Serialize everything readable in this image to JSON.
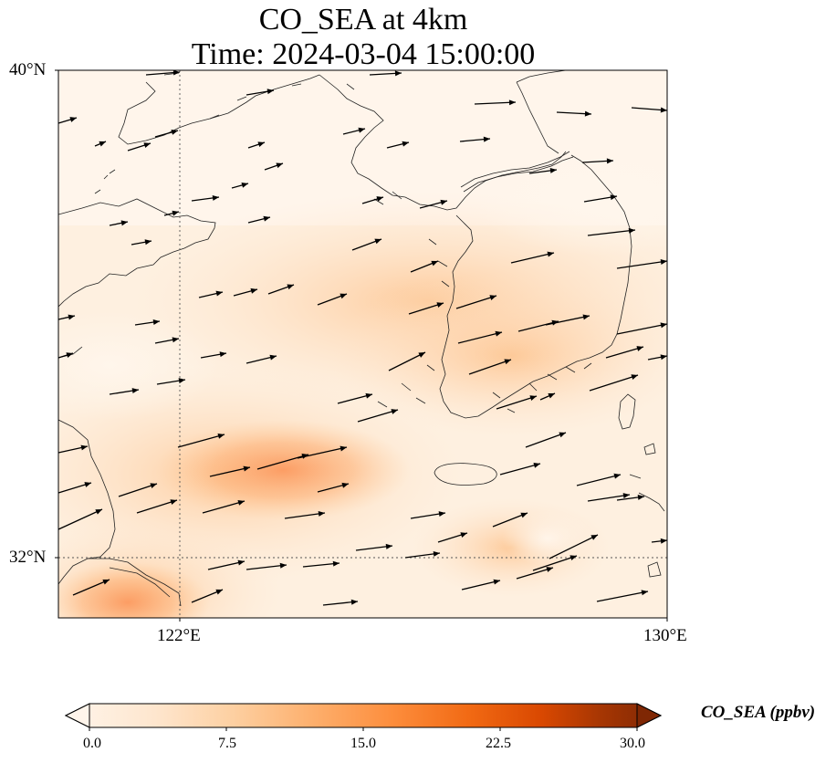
{
  "title_line1": "CO_SEA at 4km",
  "title_line2": "Time: 2024-03-04 15:00:00",
  "lat_labels": [
    "40°N",
    "32°N"
  ],
  "lon_labels": [
    "122°E",
    "130°E"
  ],
  "colorbar": {
    "label": "CO_SEA (ppbv)",
    "ticks": [
      "0.0",
      "7.5",
      "15.0",
      "22.5",
      "30.0"
    ],
    "min": 0,
    "max": 30,
    "colors": [
      "#fff5eb",
      "#fee6ce",
      "#fdd0a2",
      "#fdae6b",
      "#fd8d3c",
      "#f16913",
      "#d94801",
      "#a63603",
      "#7f2704"
    ]
  },
  "gridlines": {
    "lon": 122,
    "lat": 32
  }
}
